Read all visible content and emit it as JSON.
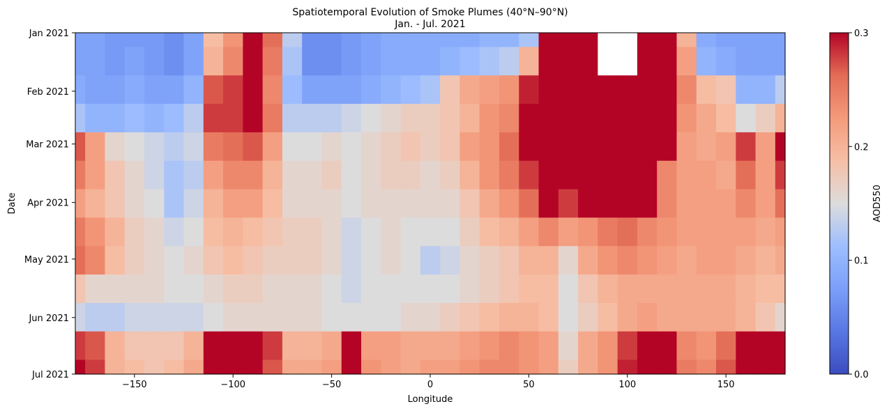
{
  "chart_data": {
    "type": "heatmap",
    "title": "Spatiotemporal Evolution of Smoke Plumes (40°N–90°N)",
    "subtitle": "Jan. - Jul. 2021",
    "xlabel": "Longitude",
    "ylabel": "Date",
    "xlim": [
      -180,
      180
    ],
    "x_ticks": [
      -150,
      -100,
      -50,
      0,
      50,
      100,
      150
    ],
    "x_tick_labels": [
      "−150",
      "−100",
      "−50",
      "0",
      "50",
      "100",
      "150"
    ],
    "y_tick_labels": [
      "Jan 2021",
      "Feb 2021",
      "Mar 2021",
      "Apr 2021",
      "May 2021",
      "Jun 2021",
      "Jul 2021"
    ],
    "y_tick_days": [
      0,
      31,
      59,
      90,
      120,
      151,
      181
    ],
    "colorbar": {
      "label": "AOD550",
      "colormap": "coolwarm",
      "range": [
        0.0,
        0.3
      ],
      "ticks": [
        "0.0",
        "0.1",
        "0.2",
        "0.3"
      ]
    },
    "missing_data_color": "#ffffff",
    "time_rows": [
      "Jan 2021",
      "mid Jan",
      "Feb 2021",
      "mid Feb",
      "Mar 2021",
      "mid Mar",
      "Apr 2021",
      "mid Apr",
      "May 2021",
      "mid May",
      "Jun 2021",
      "mid Jun",
      "Jul 2021"
    ],
    "longitude_bins": [
      -180,
      -170,
      -160,
      -150,
      -140,
      -130,
      -120,
      -110,
      -100,
      -90,
      -80,
      -70,
      -60,
      -50,
      -40,
      -30,
      -20,
      -10,
      0,
      10,
      20,
      30,
      40,
      50,
      60,
      70,
      80,
      90,
      100,
      110,
      120,
      130,
      140,
      150,
      160,
      170,
      180
    ],
    "aod_values": [
      [
        0.08,
        0.08,
        0.07,
        0.07,
        0.07,
        0.06,
        0.08,
        0.19,
        0.23,
        0.3,
        0.26,
        0.13,
        0.06,
        0.06,
        0.07,
        0.08,
        0.09,
        0.09,
        0.09,
        0.09,
        0.09,
        0.1,
        0.1,
        0.12,
        0.3,
        0.3,
        0.3,
        null,
        null,
        0.3,
        0.3,
        0.2,
        0.09,
        0.08,
        0.08,
        0.08,
        0.08
      ],
      [
        0.08,
        0.08,
        0.07,
        0.08,
        0.07,
        0.06,
        0.08,
        0.2,
        0.24,
        0.3,
        0.25,
        0.12,
        0.06,
        0.06,
        0.07,
        0.08,
        0.09,
        0.09,
        0.09,
        0.1,
        0.11,
        0.12,
        0.13,
        0.2,
        0.3,
        0.3,
        0.3,
        null,
        null,
        0.3,
        0.3,
        0.22,
        0.1,
        0.09,
        0.08,
        0.08,
        0.08
      ],
      [
        0.09,
        0.08,
        0.08,
        0.09,
        0.08,
        0.08,
        0.1,
        0.27,
        0.28,
        0.3,
        0.24,
        0.11,
        0.08,
        0.08,
        0.08,
        0.09,
        0.1,
        0.11,
        0.12,
        0.18,
        0.21,
        0.22,
        0.23,
        0.29,
        0.3,
        0.3,
        0.3,
        0.3,
        0.3,
        0.3,
        0.3,
        0.24,
        0.19,
        0.18,
        0.1,
        0.1,
        0.13
      ],
      [
        0.12,
        0.1,
        0.1,
        0.11,
        0.1,
        0.11,
        0.13,
        0.28,
        0.28,
        0.3,
        0.25,
        0.13,
        0.13,
        0.13,
        0.14,
        0.15,
        0.16,
        0.17,
        0.17,
        0.18,
        0.2,
        0.23,
        0.24,
        0.3,
        0.3,
        0.3,
        0.3,
        0.3,
        0.3,
        0.3,
        0.3,
        0.23,
        0.21,
        0.19,
        0.15,
        0.17,
        0.2
      ],
      [
        0.27,
        0.22,
        0.16,
        0.15,
        0.14,
        0.13,
        0.14,
        0.25,
        0.26,
        0.27,
        0.22,
        0.15,
        0.15,
        0.16,
        0.15,
        0.16,
        0.17,
        0.18,
        0.17,
        0.18,
        0.22,
        0.23,
        0.26,
        0.3,
        0.3,
        0.3,
        0.3,
        0.3,
        0.3,
        0.3,
        0.3,
        0.22,
        0.21,
        0.22,
        0.28,
        0.22,
        0.3
      ],
      [
        0.25,
        0.22,
        0.18,
        0.16,
        0.14,
        0.12,
        0.13,
        0.22,
        0.24,
        0.24,
        0.2,
        0.16,
        0.16,
        0.17,
        0.15,
        0.16,
        0.17,
        0.17,
        0.16,
        0.17,
        0.2,
        0.23,
        0.25,
        0.28,
        0.3,
        0.3,
        0.3,
        0.3,
        0.3,
        0.3,
        0.24,
        0.22,
        0.22,
        0.21,
        0.26,
        0.22,
        0.28
      ],
      [
        0.22,
        0.2,
        0.18,
        0.16,
        0.15,
        0.12,
        0.14,
        0.2,
        0.22,
        0.22,
        0.19,
        0.16,
        0.16,
        0.16,
        0.15,
        0.16,
        0.16,
        0.16,
        0.16,
        0.16,
        0.18,
        0.21,
        0.23,
        0.26,
        0.3,
        0.28,
        0.3,
        0.3,
        0.3,
        0.3,
        0.24,
        0.22,
        0.22,
        0.22,
        0.24,
        0.22,
        0.26
      ],
      [
        0.25,
        0.23,
        0.2,
        0.17,
        0.16,
        0.14,
        0.15,
        0.19,
        0.2,
        0.19,
        0.18,
        0.17,
        0.17,
        0.16,
        0.14,
        0.15,
        0.16,
        0.15,
        0.15,
        0.15,
        0.17,
        0.19,
        0.2,
        0.22,
        0.24,
        0.22,
        0.23,
        0.25,
        0.26,
        0.24,
        0.23,
        0.22,
        0.22,
        0.22,
        0.22,
        0.21,
        0.22
      ],
      [
        0.26,
        0.24,
        0.19,
        0.17,
        0.16,
        0.15,
        0.16,
        0.18,
        0.19,
        0.18,
        0.17,
        0.17,
        0.17,
        0.16,
        0.14,
        0.15,
        0.16,
        0.15,
        0.13,
        0.14,
        0.16,
        0.17,
        0.18,
        0.2,
        0.2,
        0.16,
        0.21,
        0.23,
        0.24,
        0.23,
        0.22,
        0.21,
        0.22,
        0.22,
        0.21,
        0.2,
        0.21
      ],
      [
        0.18,
        0.16,
        0.16,
        0.16,
        0.16,
        0.15,
        0.15,
        0.16,
        0.17,
        0.17,
        0.16,
        0.16,
        0.16,
        0.15,
        0.14,
        0.15,
        0.15,
        0.15,
        0.15,
        0.15,
        0.16,
        0.17,
        0.18,
        0.19,
        0.19,
        0.15,
        0.18,
        0.2,
        0.21,
        0.21,
        0.21,
        0.21,
        0.21,
        0.21,
        0.2,
        0.19,
        0.19
      ],
      [
        0.14,
        0.13,
        0.13,
        0.14,
        0.14,
        0.14,
        0.14,
        0.15,
        0.16,
        0.16,
        0.16,
        0.16,
        0.16,
        0.15,
        0.15,
        0.15,
        0.15,
        0.16,
        0.16,
        0.17,
        0.18,
        0.19,
        0.2,
        0.2,
        0.19,
        0.15,
        0.17,
        0.19,
        0.21,
        0.22,
        0.21,
        0.21,
        0.21,
        0.21,
        0.2,
        0.18,
        0.16
      ],
      [
        0.28,
        0.27,
        0.2,
        0.18,
        0.18,
        0.18,
        0.2,
        0.3,
        0.3,
        0.3,
        0.28,
        0.2,
        0.2,
        0.21,
        0.3,
        0.22,
        0.22,
        0.21,
        0.21,
        0.21,
        0.22,
        0.23,
        0.24,
        0.23,
        0.22,
        0.16,
        0.21,
        0.23,
        0.28,
        0.3,
        0.3,
        0.24,
        0.23,
        0.26,
        0.3,
        0.3,
        0.3
      ],
      [
        0.3,
        0.28,
        0.2,
        0.19,
        0.18,
        0.19,
        0.21,
        0.3,
        0.3,
        0.3,
        0.27,
        0.21,
        0.21,
        0.22,
        0.3,
        0.23,
        0.22,
        0.21,
        0.22,
        0.22,
        0.23,
        0.24,
        0.24,
        0.23,
        0.22,
        0.17,
        0.21,
        0.23,
        0.29,
        0.3,
        0.3,
        0.25,
        0.24,
        0.27,
        0.3,
        0.3,
        0.3
      ]
    ]
  }
}
